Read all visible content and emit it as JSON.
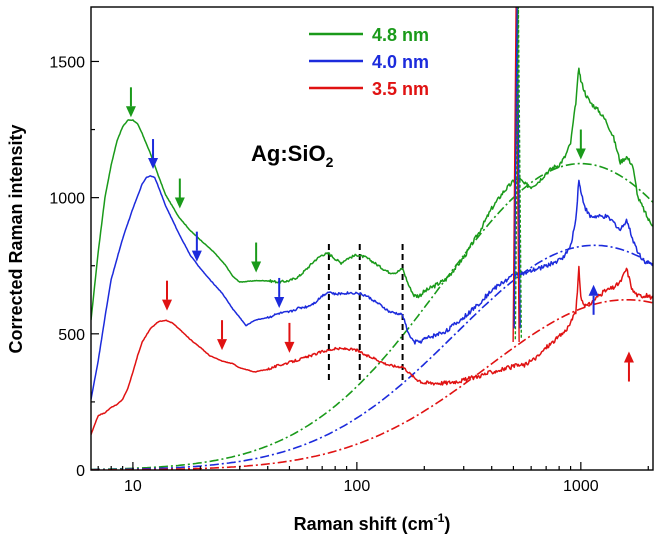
{
  "chart_data": {
    "type": "line",
    "xlabel": "Raman shift (cm-1)",
    "ylabel": "Corrected Raman intensity",
    "xscale": "log",
    "xlim": [
      6.5,
      2100
    ],
    "ylim": [
      0,
      1700
    ],
    "x_ticks": [
      10,
      100,
      1000
    ],
    "x_tick_labels": [
      "10",
      "100",
      "1000"
    ],
    "y_ticks": [
      0,
      500,
      1000,
      1500
    ],
    "y_tick_labels": [
      "0",
      "500",
      "1000",
      "1500"
    ],
    "grid": false,
    "legend_position": "top-center",
    "annotation": {
      "main": "Ag:SiO",
      "sub": "2"
    },
    "series": [
      {
        "name": "4.8 nm",
        "color": "#1a9a1a",
        "points": [
          [
            6.5,
            550
          ],
          [
            7,
            800
          ],
          [
            7.5,
            1000
          ],
          [
            8,
            1120
          ],
          [
            8.5,
            1210
          ],
          [
            9,
            1260
          ],
          [
            9.5,
            1285
          ],
          [
            10,
            1285
          ],
          [
            10.5,
            1270
          ],
          [
            11,
            1235
          ],
          [
            12,
            1160
          ],
          [
            13,
            1080
          ],
          [
            14,
            1010
          ],
          [
            16,
            930
          ],
          [
            18,
            880
          ],
          [
            20,
            845
          ],
          [
            23,
            800
          ],
          [
            26,
            750
          ],
          [
            28,
            710
          ],
          [
            30,
            690
          ],
          [
            35,
            695
          ],
          [
            40,
            695
          ],
          [
            45,
            690
          ],
          [
            50,
            695
          ],
          [
            55,
            710
          ],
          [
            60,
            740
          ],
          [
            65,
            770
          ],
          [
            70,
            790
          ],
          [
            75,
            795
          ],
          [
            80,
            775
          ],
          [
            85,
            760
          ],
          [
            90,
            775
          ],
          [
            100,
            790
          ],
          [
            110,
            780
          ],
          [
            120,
            760
          ],
          [
            130,
            740
          ],
          [
            140,
            725
          ],
          [
            150,
            725
          ],
          [
            160,
            740
          ],
          [
            170,
            680
          ],
          [
            180,
            640
          ],
          [
            190,
            640
          ],
          [
            200,
            655
          ],
          [
            250,
            700
          ],
          [
            300,
            780
          ],
          [
            350,
            870
          ],
          [
            400,
            960
          ],
          [
            450,
            1020
          ],
          [
            500,
            1060
          ],
          [
            530,
            1070
          ],
          [
            560,
            1050
          ],
          [
            600,
            1040
          ],
          [
            650,
            1060
          ],
          [
            700,
            1090
          ],
          [
            750,
            1110
          ],
          [
            800,
            1120
          ],
          [
            850,
            1150
          ],
          [
            900,
            1200
          ],
          [
            950,
            1350
          ],
          [
            980,
            1480
          ],
          [
            1000,
            1430
          ],
          [
            1050,
            1380
          ],
          [
            1100,
            1350
          ],
          [
            1200,
            1320
          ],
          [
            1300,
            1280
          ],
          [
            1400,
            1220
          ],
          [
            1500,
            1130
          ],
          [
            1600,
            1150
          ],
          [
            1700,
            1120
          ],
          [
            1800,
            1000
          ],
          [
            1900,
            960
          ],
          [
            2000,
            920
          ],
          [
            2100,
            900
          ]
        ]
      },
      {
        "name": "4.0 nm",
        "color": "#1c2bdc",
        "points": [
          [
            6.5,
            260
          ],
          [
            7,
            400
          ],
          [
            7.5,
            560
          ],
          [
            8,
            700
          ],
          [
            9,
            850
          ],
          [
            10,
            960
          ],
          [
            11,
            1050
          ],
          [
            11.5,
            1075
          ],
          [
            12,
            1080
          ],
          [
            12.5,
            1075
          ],
          [
            13,
            1040
          ],
          [
            14,
            970
          ],
          [
            16,
            870
          ],
          [
            18,
            790
          ],
          [
            20,
            740
          ],
          [
            22,
            700
          ],
          [
            25,
            650
          ],
          [
            28,
            590
          ],
          [
            30,
            560
          ],
          [
            32,
            530
          ],
          [
            35,
            550
          ],
          [
            40,
            560
          ],
          [
            45,
            575
          ],
          [
            50,
            580
          ],
          [
            55,
            595
          ],
          [
            60,
            600
          ],
          [
            65,
            615
          ],
          [
            70,
            640
          ],
          [
            75,
            655
          ],
          [
            80,
            645
          ],
          [
            90,
            650
          ],
          [
            100,
            650
          ],
          [
            110,
            640
          ],
          [
            120,
            620
          ],
          [
            130,
            600
          ],
          [
            140,
            580
          ],
          [
            150,
            575
          ],
          [
            160,
            570
          ],
          [
            170,
            500
          ],
          [
            180,
            470
          ],
          [
            190,
            470
          ],
          [
            200,
            480
          ],
          [
            250,
            510
          ],
          [
            300,
            560
          ],
          [
            350,
            610
          ],
          [
            400,
            660
          ],
          [
            450,
            690
          ],
          [
            500,
            715
          ],
          [
            530,
            725
          ],
          [
            560,
            720
          ],
          [
            600,
            730
          ],
          [
            650,
            740
          ],
          [
            700,
            750
          ],
          [
            750,
            760
          ],
          [
            800,
            770
          ],
          [
            850,
            790
          ],
          [
            900,
            820
          ],
          [
            950,
            920
          ],
          [
            980,
            1070
          ],
          [
            1000,
            1020
          ],
          [
            1050,
            960
          ],
          [
            1100,
            930
          ],
          [
            1200,
            930
          ],
          [
            1300,
            930
          ],
          [
            1400,
            910
          ],
          [
            1500,
            880
          ],
          [
            1600,
            920
          ],
          [
            1700,
            850
          ],
          [
            1800,
            800
          ],
          [
            1900,
            770
          ],
          [
            2000,
            760
          ],
          [
            2100,
            750
          ]
        ]
      },
      {
        "name": "3.5 nm",
        "color": "#e01212",
        "points": [
          [
            6.5,
            130
          ],
          [
            7,
            200
          ],
          [
            7.5,
            210
          ],
          [
            8,
            230
          ],
          [
            8.5,
            240
          ],
          [
            9,
            260
          ],
          [
            9.5,
            300
          ],
          [
            10,
            360
          ],
          [
            10.5,
            420
          ],
          [
            11,
            470
          ],
          [
            12,
            520
          ],
          [
            13,
            545
          ],
          [
            14,
            550
          ],
          [
            15,
            540
          ],
          [
            16,
            520
          ],
          [
            18,
            480
          ],
          [
            20,
            450
          ],
          [
            22,
            420
          ],
          [
            25,
            400
          ],
          [
            28,
            390
          ],
          [
            30,
            375
          ],
          [
            35,
            360
          ],
          [
            40,
            370
          ],
          [
            45,
            385
          ],
          [
            50,
            395
          ],
          [
            55,
            405
          ],
          [
            60,
            415
          ],
          [
            65,
            425
          ],
          [
            70,
            435
          ],
          [
            80,
            445
          ],
          [
            90,
            445
          ],
          [
            100,
            440
          ],
          [
            110,
            420
          ],
          [
            120,
            410
          ],
          [
            130,
            395
          ],
          [
            140,
            385
          ],
          [
            150,
            380
          ],
          [
            160,
            380
          ],
          [
            180,
            340
          ],
          [
            200,
            320
          ],
          [
            250,
            320
          ],
          [
            300,
            330
          ],
          [
            350,
            345
          ],
          [
            400,
            360
          ],
          [
            450,
            370
          ],
          [
            500,
            380
          ],
          [
            530,
            385
          ],
          [
            560,
            385
          ],
          [
            600,
            400
          ],
          [
            650,
            420
          ],
          [
            700,
            450
          ],
          [
            750,
            470
          ],
          [
            800,
            490
          ],
          [
            850,
            510
          ],
          [
            900,
            540
          ],
          [
            950,
            580
          ],
          [
            980,
            740
          ],
          [
            1000,
            630
          ],
          [
            1050,
            600
          ],
          [
            1100,
            610
          ],
          [
            1200,
            640
          ],
          [
            1300,
            660
          ],
          [
            1400,
            670
          ],
          [
            1500,
            690
          ],
          [
            1600,
            740
          ],
          [
            1700,
            660
          ],
          [
            1800,
            640
          ],
          [
            1900,
            640
          ],
          [
            2000,
            640
          ],
          [
            2100,
            630
          ]
        ]
      }
    ],
    "baselines": [
      {
        "color": "#1a9a1a",
        "peak_x": 1000,
        "peak_y": 1125,
        "width_decades": 0.62
      },
      {
        "color": "#1c2bdc",
        "peak_x": 1150,
        "peak_y": 825,
        "width_decades": 0.62
      },
      {
        "color": "#e01212",
        "peak_x": 1600,
        "peak_y": 625,
        "width_decades": 0.62
      }
    ],
    "narrow_peaks": [
      {
        "color": "#e01212",
        "x": 520,
        "y": 470
      },
      {
        "color": "#1c2bdc",
        "x": 520,
        "y": 520
      },
      {
        "color": "#1a9a1a",
        "x": 520,
        "y": 480
      }
    ],
    "vertical_lines": [
      75,
      103,
      160
    ],
    "vertical_lines_range": [
      320,
      830
    ],
    "markers": [
      {
        "color": "#1a9a1a",
        "x": 9.8,
        "y": 1295,
        "dir": "down"
      },
      {
        "color": "#1a9a1a",
        "x": 16.2,
        "y": 960,
        "dir": "down"
      },
      {
        "color": "#1a9a1a",
        "x": 35.5,
        "y": 725,
        "dir": "down"
      },
      {
        "color": "#1a9a1a",
        "x": 1000,
        "y": 1140,
        "dir": "down"
      },
      {
        "color": "#1c2bdc",
        "x": 12.3,
        "y": 1105,
        "dir": "down"
      },
      {
        "color": "#1c2bdc",
        "x": 19.3,
        "y": 765,
        "dir": "down"
      },
      {
        "color": "#1c2bdc",
        "x": 45,
        "y": 595,
        "dir": "down"
      },
      {
        "color": "#1c2bdc",
        "x": 1140,
        "y": 680,
        "dir": "up"
      },
      {
        "color": "#e01212",
        "x": 14.2,
        "y": 585,
        "dir": "down"
      },
      {
        "color": "#e01212",
        "x": 25,
        "y": 440,
        "dir": "down"
      },
      {
        "color": "#e01212",
        "x": 50,
        "y": 430,
        "dir": "down"
      },
      {
        "color": "#e01212",
        "x": 1640,
        "y": 435,
        "dir": "up"
      }
    ]
  }
}
